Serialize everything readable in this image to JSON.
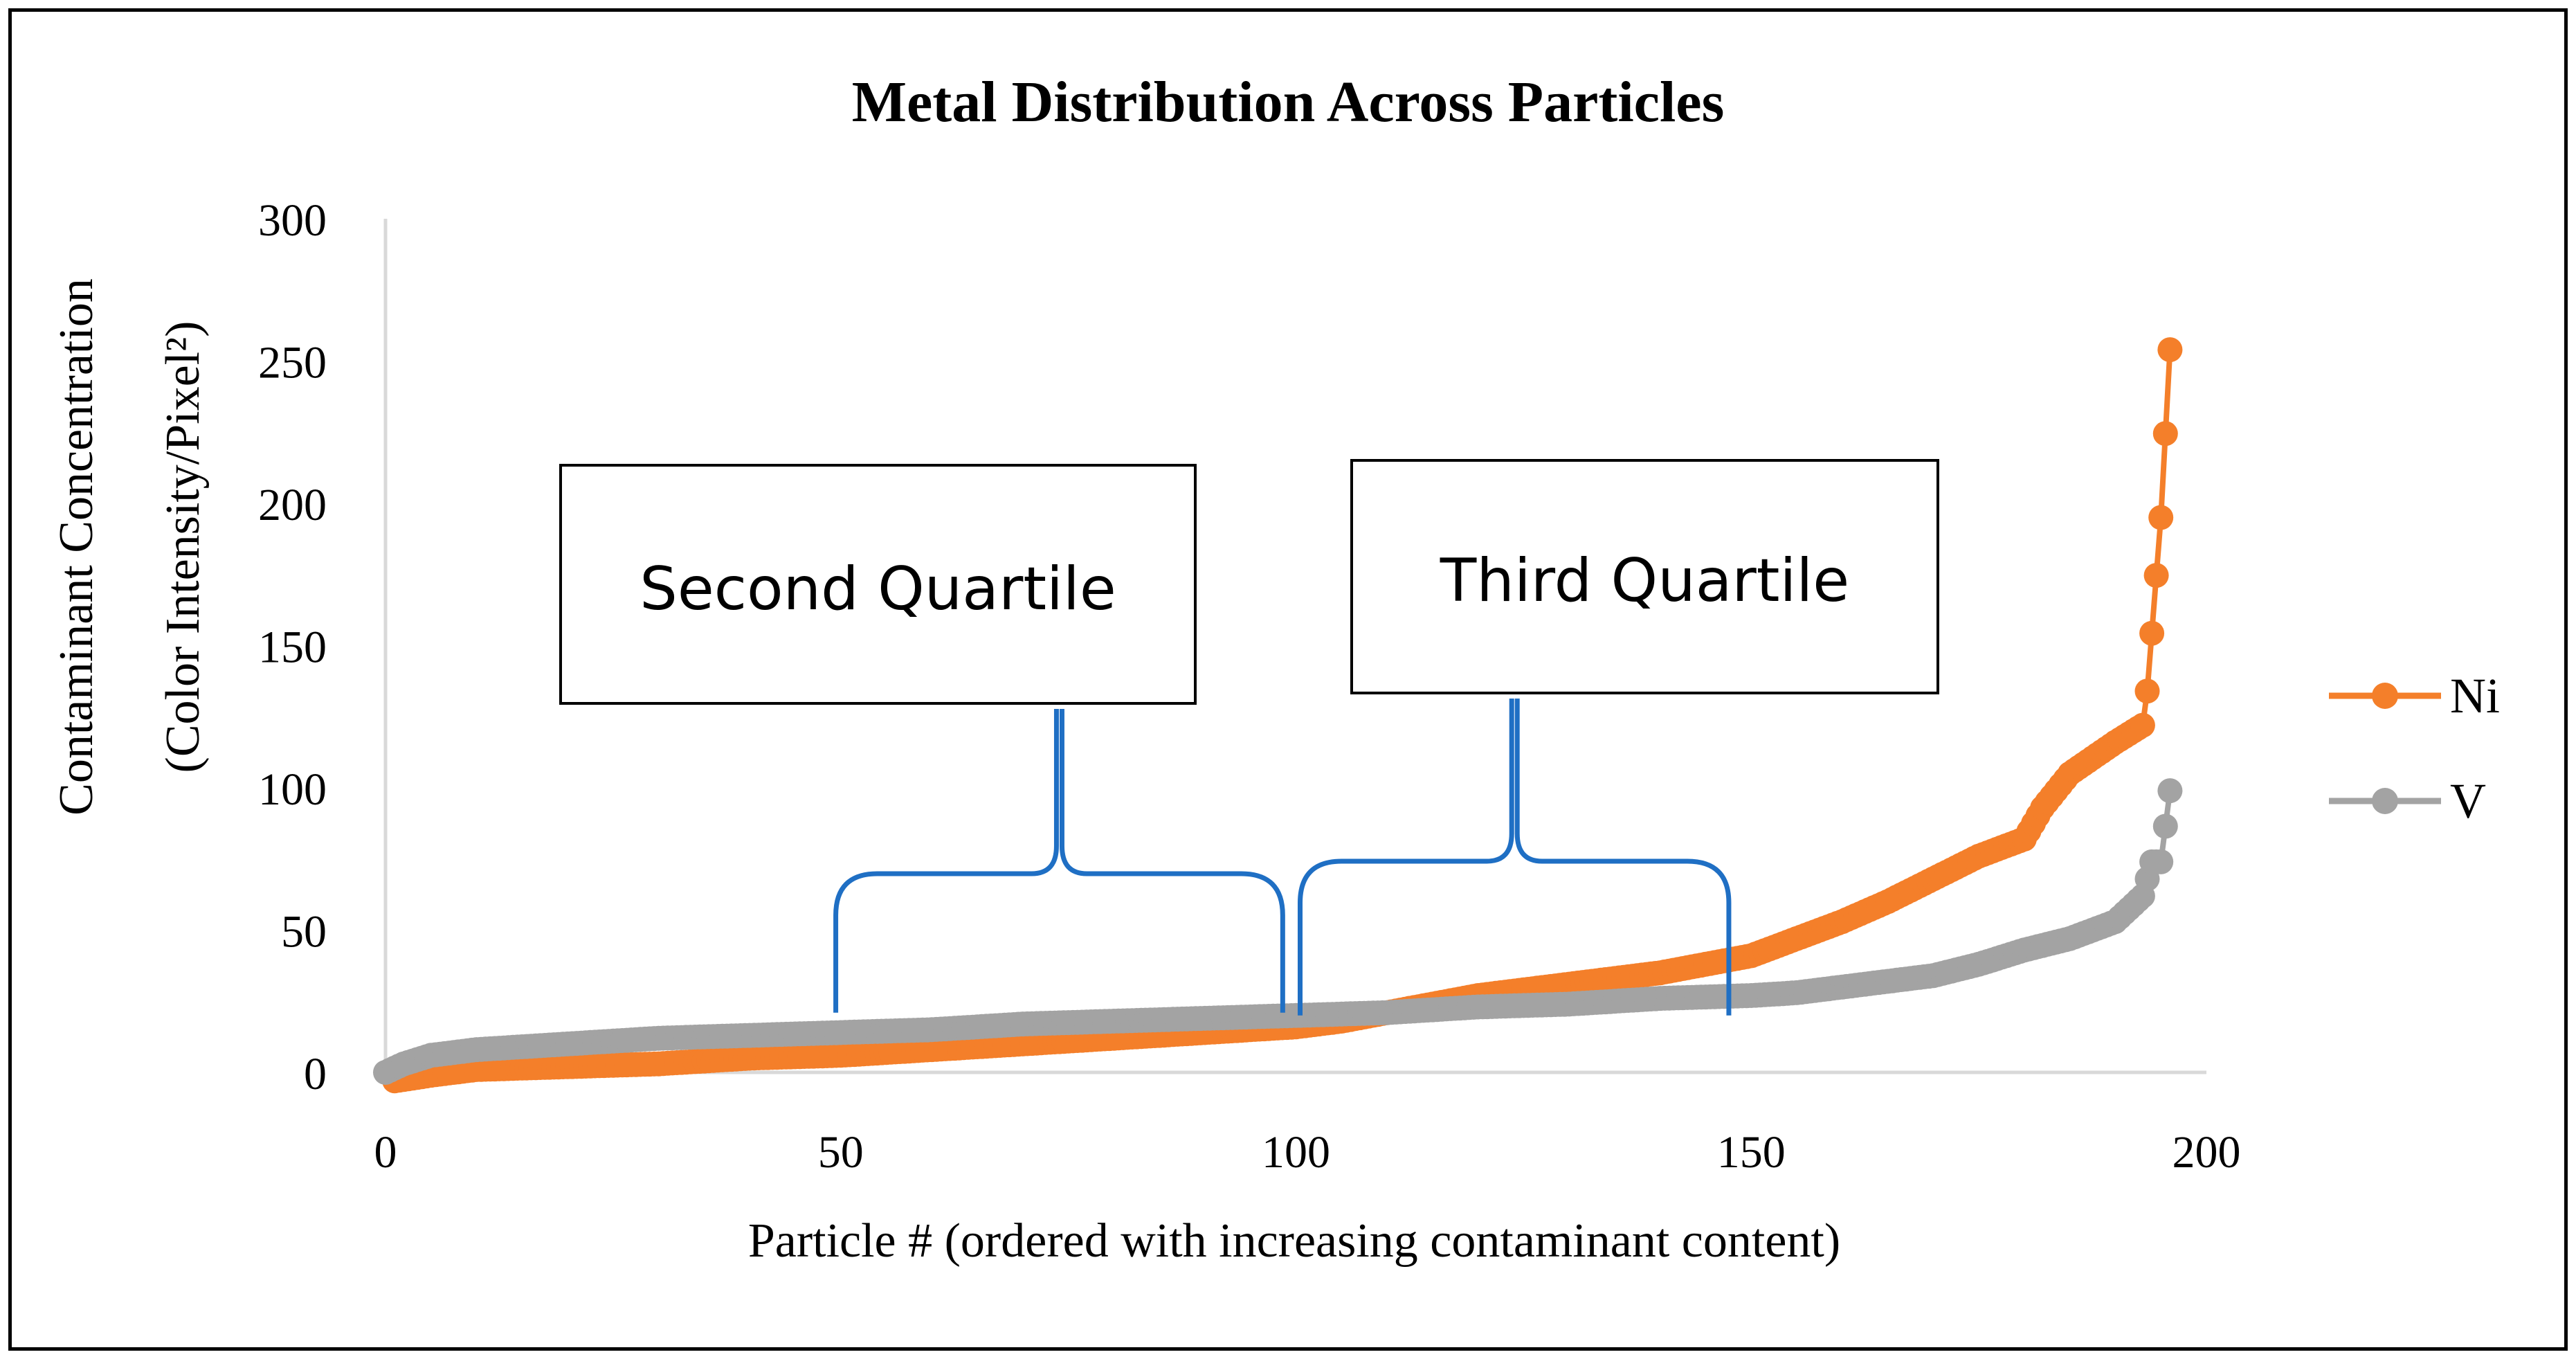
{
  "chart_data": {
    "type": "scatter",
    "title": "Metal Distribution Across Particles",
    "xlabel": "Particle # (ordered with increasing contaminant content)",
    "ylabel_line1": "Contaminant Concentration",
    "ylabel_line2": "(Color Intensity/Pixel²)",
    "xlim": [
      0,
      200
    ],
    "ylim": [
      0,
      300
    ],
    "x_ticks": [
      "0",
      "50",
      "100",
      "150",
      "200"
    ],
    "y_ticks": [
      "0",
      "50",
      "100",
      "150",
      "200",
      "250",
      "300"
    ],
    "legend_position": "right",
    "series": [
      {
        "name": "Ni",
        "color": "#F47F2A",
        "points": [
          [
            1,
            -3
          ],
          [
            3,
            -2
          ],
          [
            5,
            -1
          ],
          [
            10,
            1
          ],
          [
            20,
            2
          ],
          [
            30,
            3
          ],
          [
            40,
            5
          ],
          [
            50,
            6
          ],
          [
            60,
            8
          ],
          [
            70,
            10
          ],
          [
            80,
            12
          ],
          [
            90,
            14
          ],
          [
            100,
            16
          ],
          [
            105,
            18
          ],
          [
            110,
            21
          ],
          [
            115,
            24
          ],
          [
            120,
            27
          ],
          [
            125,
            29
          ],
          [
            130,
            31
          ],
          [
            135,
            33
          ],
          [
            140,
            35
          ],
          [
            145,
            38
          ],
          [
            150,
            41
          ],
          [
            155,
            47
          ],
          [
            160,
            53
          ],
          [
            165,
            60
          ],
          [
            170,
            68
          ],
          [
            175,
            76
          ],
          [
            180,
            82
          ],
          [
            182,
            93
          ],
          [
            185,
            105
          ],
          [
            190,
            116
          ],
          [
            193,
            122
          ],
          [
            193.5,
            134
          ],
          [
            195,
            195
          ],
          [
            196,
            254
          ]
        ]
      },
      {
        "name": "V",
        "color": "#A3A3A3",
        "points": [
          [
            0,
            0
          ],
          [
            2,
            3
          ],
          [
            5,
            6
          ],
          [
            10,
            8
          ],
          [
            20,
            10
          ],
          [
            30,
            12
          ],
          [
            40,
            13
          ],
          [
            50,
            14
          ],
          [
            60,
            15
          ],
          [
            70,
            17
          ],
          [
            80,
            18
          ],
          [
            90,
            19
          ],
          [
            100,
            20
          ],
          [
            110,
            21
          ],
          [
            120,
            23
          ],
          [
            130,
            24
          ],
          [
            140,
            26
          ],
          [
            150,
            27
          ],
          [
            155,
            28
          ],
          [
            160,
            30
          ],
          [
            165,
            32
          ],
          [
            170,
            34
          ],
          [
            175,
            38
          ],
          [
            180,
            43
          ],
          [
            185,
            47
          ],
          [
            190,
            53
          ],
          [
            193,
            62
          ],
          [
            194,
            74
          ],
          [
            195,
            74
          ],
          [
            196,
            99
          ]
        ]
      }
    ],
    "annotations": [
      {
        "text": "Second Quartile",
        "range": [
          49,
          99
        ]
      },
      {
        "text": "Third Quartile",
        "range": [
          100,
          148
        ]
      }
    ]
  }
}
